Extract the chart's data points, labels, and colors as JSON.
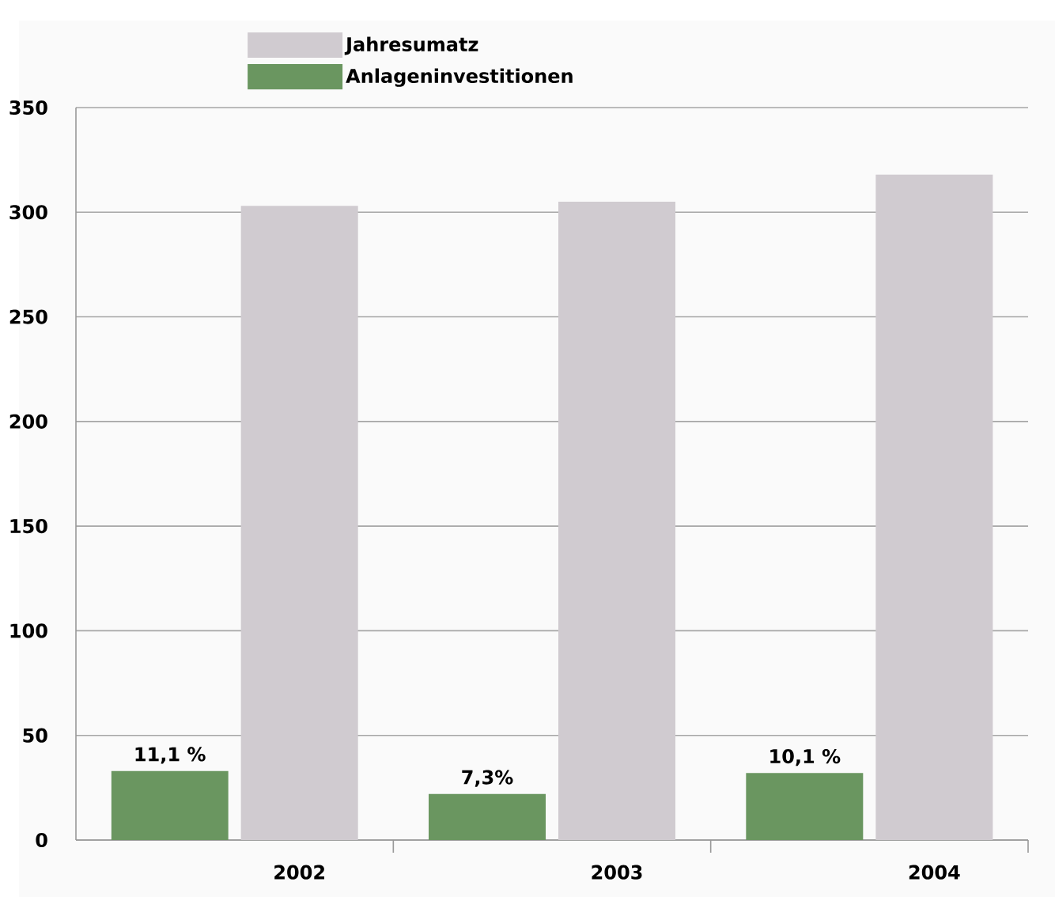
{
  "chart_data": {
    "type": "bar",
    "categories": [
      "2002",
      "2003",
      "2004"
    ],
    "series": [
      {
        "name": "Anlageninvestitionen",
        "color": "#6a9660",
        "values": [
          33,
          22,
          32
        ]
      },
      {
        "name": "Jahresumatz",
        "color": "#d0cbd0",
        "values": [
          303,
          305,
          318
        ]
      }
    ],
    "annotations": [
      "11,1 %",
      "7,3%",
      "10,1 %"
    ],
    "ylim": [
      0,
      350
    ],
    "yticks": [
      0,
      50,
      100,
      150,
      200,
      250,
      300,
      350
    ],
    "grid": "y",
    "legend": "top"
  }
}
